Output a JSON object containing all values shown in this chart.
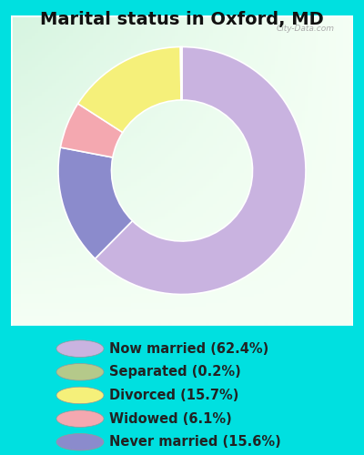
{
  "title": "Marital status in Oxford, MD",
  "slices": [
    62.4,
    15.6,
    6.1,
    15.7,
    0.2
  ],
  "colors": [
    "#c9b3e0",
    "#8b8bcc",
    "#f4a8b0",
    "#f5f07a",
    "#b5c98a"
  ],
  "labels": [
    "Now married (62.4%)",
    "Separated (0.2%)",
    "Divorced (15.7%)",
    "Widowed (6.1%)",
    "Never married (15.6%)"
  ],
  "legend_colors": [
    "#c9b3e0",
    "#b5c98a",
    "#f5f07a",
    "#f4a8b0",
    "#8b8bcc"
  ],
  "bg_outer": "#00e0e0",
  "watermark": "City-Data.com",
  "title_fontsize": 14,
  "legend_fontsize": 10.5,
  "chart_bg_tl": [
    0.84,
    0.96,
    0.88
  ],
  "chart_bg_br": [
    0.96,
    1.0,
    0.96
  ]
}
